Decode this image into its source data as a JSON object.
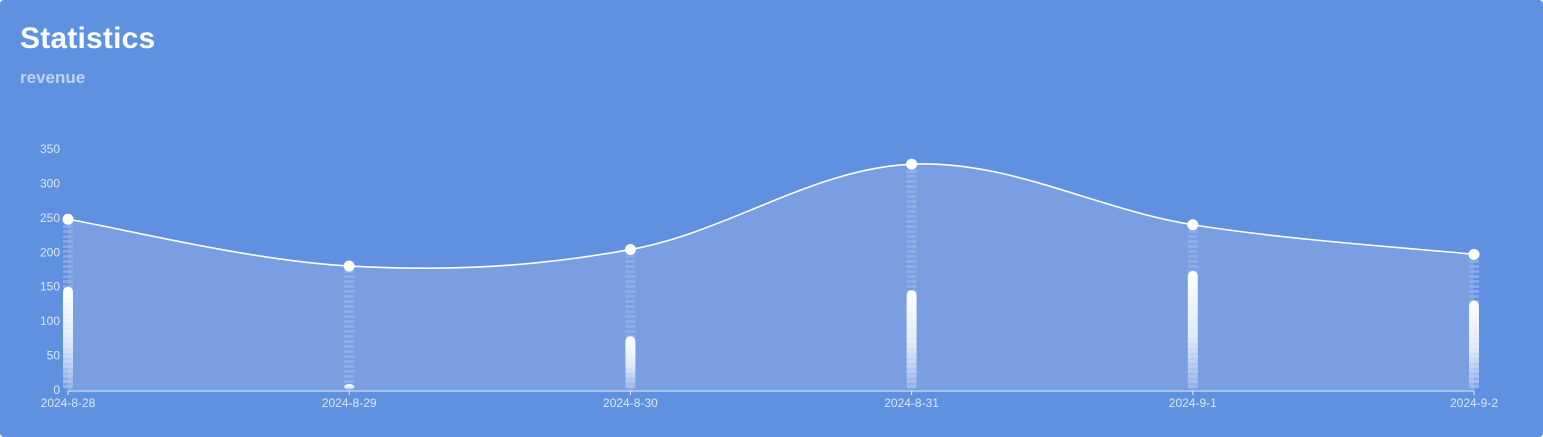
{
  "card": {
    "title": "Statistics",
    "subtitle": "revenue"
  },
  "colors": {
    "background": "#5f91e0",
    "area_fill": "#7a9fe2",
    "line": "#ffffff",
    "bar_top": "#ffffff",
    "bar_shadow": "#85a8e8"
  },
  "chart_data": {
    "type": "line",
    "x": [
      "2024-8-28",
      "2024-8-29",
      "2024-8-30",
      "2024-8-31",
      "2024-9-1",
      "2024-9-2"
    ],
    "series": [
      {
        "type": "area",
        "values": [
          248,
          180,
          204,
          328,
          240,
          197
        ]
      },
      {
        "type": "bar",
        "values": [
          150,
          5,
          78,
          145,
          173,
          130
        ]
      }
    ],
    "ylim": [
      0,
      350
    ],
    "yticks": [
      "0",
      "50",
      "100",
      "150",
      "200",
      "250",
      "300",
      "350"
    ],
    "grid": false,
    "smooth": true
  }
}
